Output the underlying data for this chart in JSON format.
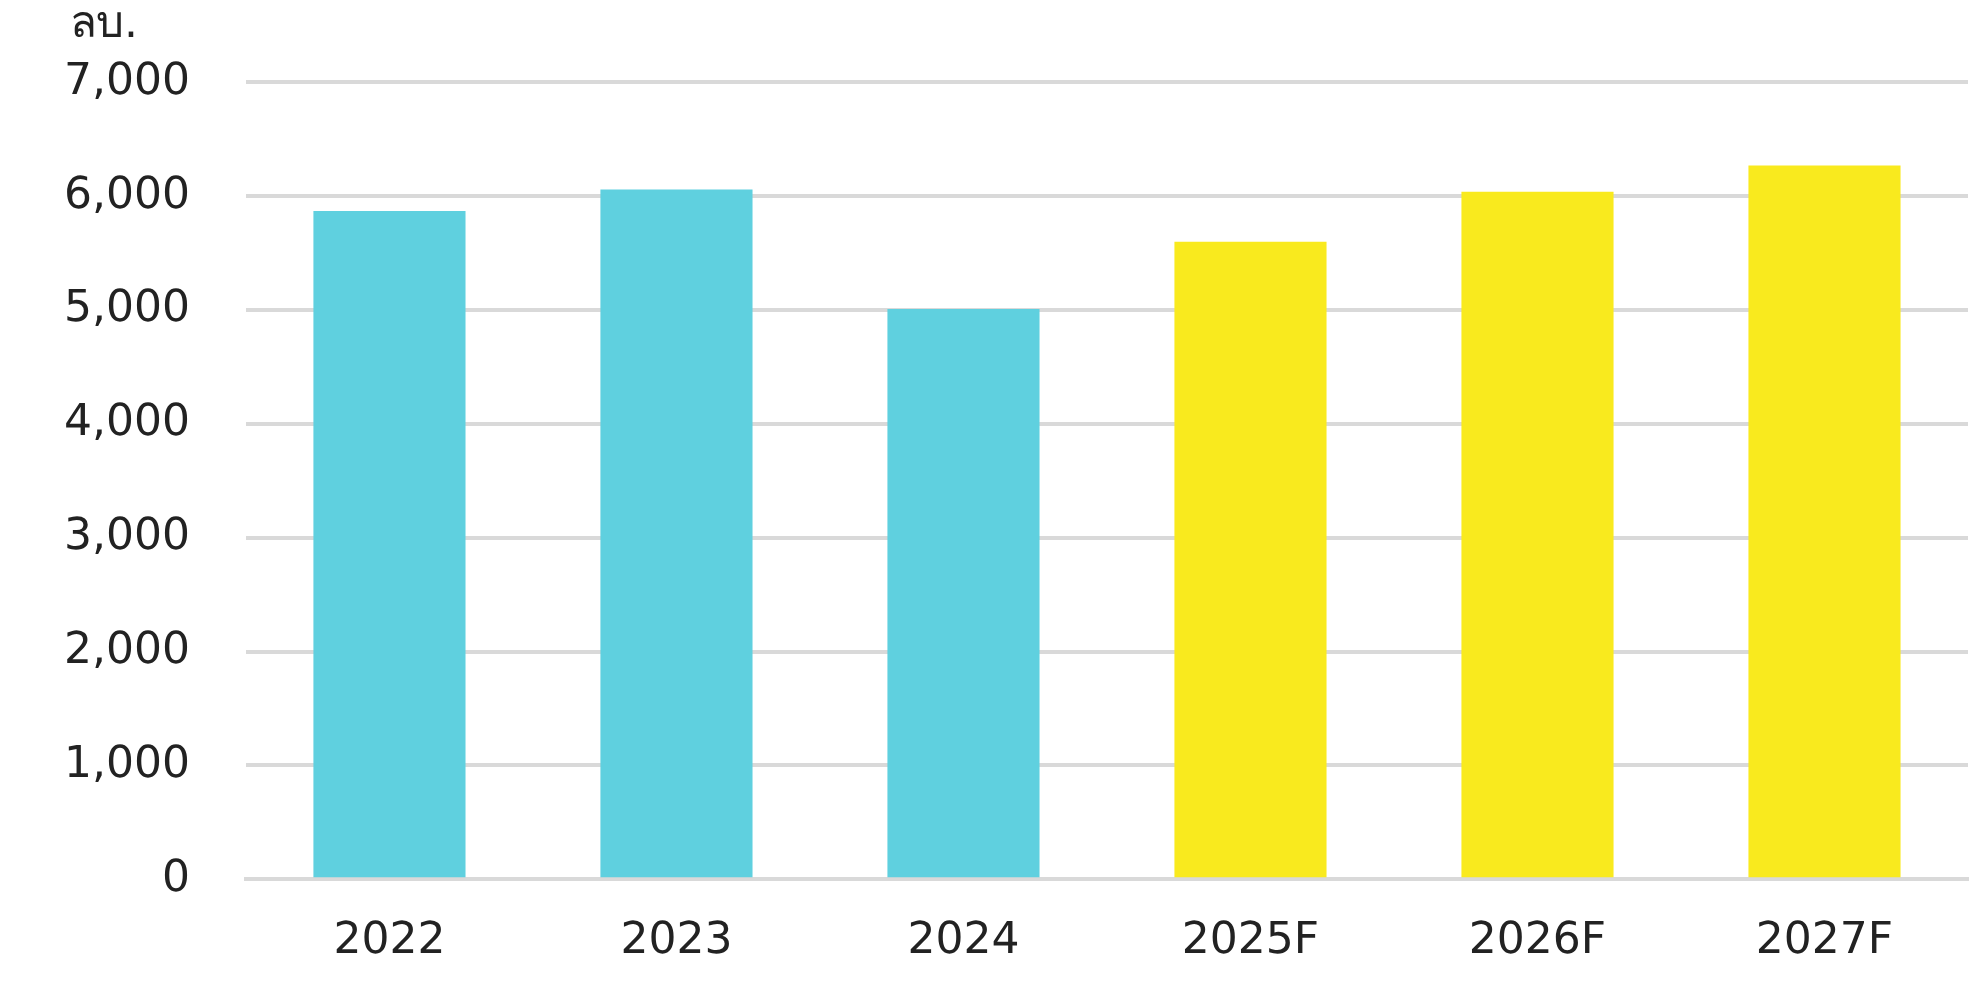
{
  "chart_data": {
    "type": "bar",
    "ylabel": "ลบ.",
    "categories": [
      "2022",
      "2023",
      "2024",
      "2025F",
      "2026F",
      "2027F"
    ],
    "values": [
      5870,
      6060,
      5010,
      5600,
      6040,
      6270
    ],
    "colors": [
      "#5fd0df",
      "#5fd0df",
      "#5fd0df",
      "#f9ea1e",
      "#f9ea1e",
      "#f9ea1e"
    ],
    "ylim": [
      0,
      7000
    ],
    "yticks": [
      {
        "value": 0,
        "label": "0"
      },
      {
        "value": 1000,
        "label": "1,000"
      },
      {
        "value": 2000,
        "label": "2,000"
      },
      {
        "value": 3000,
        "label": "3,000"
      },
      {
        "value": 4000,
        "label": "4,000"
      },
      {
        "value": 5000,
        "label": "5,000"
      },
      {
        "value": 6000,
        "label": "6,000"
      },
      {
        "value": 7000,
        "label": "7,000"
      }
    ],
    "grid": "y",
    "legend": false
  }
}
